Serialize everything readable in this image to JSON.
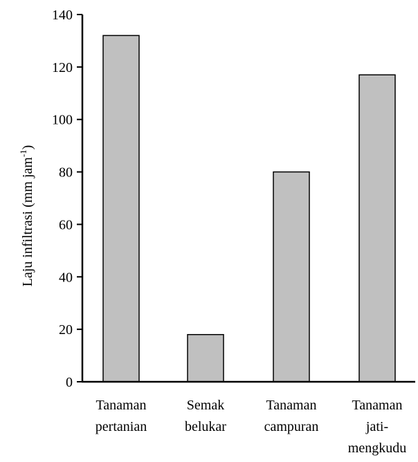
{
  "chart_data": {
    "type": "bar",
    "categories": [
      [
        "Tanaman",
        "pertanian"
      ],
      [
        "Semak",
        "belukar"
      ],
      [
        "Tanaman",
        "campuran"
      ],
      [
        "Tanaman",
        "jati-",
        "mengkudu"
      ]
    ],
    "values": [
      132,
      18,
      80,
      117
    ],
    "title": "",
    "xlabel": "",
    "ylabel": "Laju infiltrasi (mm jam",
    "ylabel_superscript": "-1",
    "ylabel_suffix": ")",
    "ylim": [
      0,
      140
    ],
    "yticks": [
      0,
      20,
      40,
      60,
      80,
      100,
      120,
      140
    ],
    "grid": false,
    "legend": "none",
    "bar_color": "#c0c0c0",
    "bar_edge_color": "#000000",
    "axis_color": "#000000"
  }
}
